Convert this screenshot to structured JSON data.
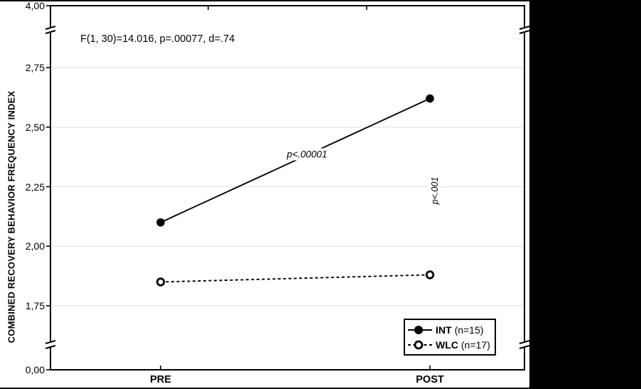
{
  "colors": {
    "ink": "#000000",
    "grid": "#e4e4e4",
    "figure_bg": "#ffffff",
    "outer_bg": "#000000"
  },
  "chart_data": {
    "type": "line",
    "title": "",
    "categories": [
      "PRE",
      "POST"
    ],
    "series": [
      {
        "name": "INT",
        "n_label": "(n=15)",
        "values": [
          2.1,
          2.62
        ],
        "line_style": "solid",
        "marker": "filled"
      },
      {
        "name": "WLC",
        "n_label": "(n=17)",
        "values": [
          1.85,
          1.88
        ],
        "line_style": "dashed",
        "marker": "open"
      }
    ],
    "xlabel": "",
    "ylabel": "COMBINED RECOVERY BEHAVIOR FREQUENCY INDEX",
    "y_ticks": [
      {
        "label": "4,00",
        "value": 4.0
      },
      {
        "label": "2,75",
        "value": 2.75
      },
      {
        "label": "2,50",
        "value": 2.5
      },
      {
        "label": "2,25",
        "value": 2.25
      },
      {
        "label": "2,00",
        "value": 2.0
      },
      {
        "label": "1,75",
        "value": 1.75
      },
      {
        "label": "0,00",
        "value": 0.0
      }
    ],
    "y_axis_break": {
      "visible_range": [
        1.75,
        2.75
      ],
      "full_range": [
        0,
        4
      ]
    },
    "grid": "horizontal",
    "legend_position": "bottom-right-inside",
    "annotations": {
      "stats": "F(1, 30)=14.016, p=.00077, d=.74",
      "slope_p": "p<.00001",
      "post_p": "p<.001"
    }
  }
}
